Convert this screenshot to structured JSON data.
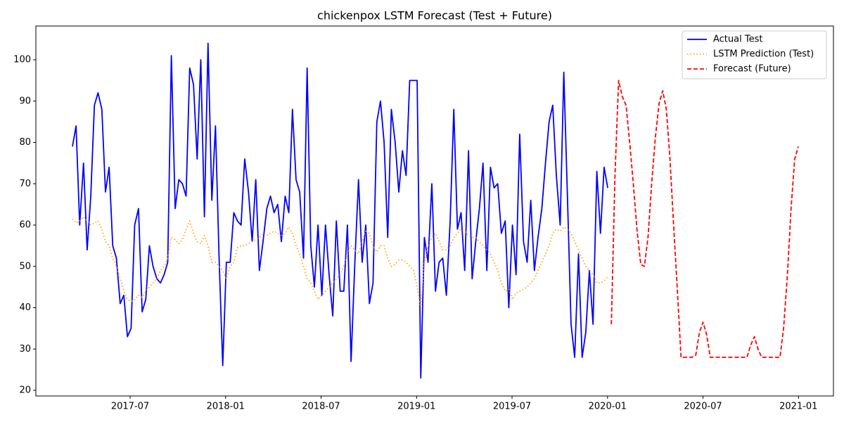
{
  "chart_data": {
    "type": "line",
    "title": "chickenpox LSTM Forecast (Test + Future)",
    "xlim": [
      2017.0065,
      2021.183
    ],
    "ylim": [
      18.64,
      108.17
    ],
    "xticks": [
      {
        "value": 2017.5,
        "label": "2017-07"
      },
      {
        "value": 2018.0,
        "label": "2018-01"
      },
      {
        "value": 2018.5,
        "label": "2018-07"
      },
      {
        "value": 2019.0,
        "label": "2019-01"
      },
      {
        "value": 2019.5,
        "label": "2019-07"
      },
      {
        "value": 2020.0,
        "label": "2020-01"
      },
      {
        "value": 2020.5,
        "label": "2020-07"
      },
      {
        "value": 2021.0,
        "label": "2021-01"
      }
    ],
    "yticks": [
      20,
      30,
      40,
      50,
      60,
      70,
      80,
      90,
      100
    ],
    "grid": false,
    "legend": "upper right",
    "x": [
      2017.198,
      2017.217,
      2017.236,
      2017.256,
      2017.275,
      2017.294,
      2017.313,
      2017.332,
      2017.352,
      2017.371,
      2017.39,
      2017.409,
      2017.428,
      2017.448,
      2017.467,
      2017.486,
      2017.505,
      2017.524,
      2017.544,
      2017.563,
      2017.582,
      2017.601,
      2017.62,
      2017.64,
      2017.659,
      2017.678,
      2017.697,
      2017.716,
      2017.736,
      2017.755,
      2017.774,
      2017.793,
      2017.812,
      2017.832,
      2017.851,
      2017.87,
      2017.889,
      2017.908,
      2017.928,
      2017.947,
      2017.966,
      2017.985,
      2018.004,
      2018.024,
      2018.043,
      2018.062,
      2018.081,
      2018.1,
      2018.12,
      2018.139,
      2018.158,
      2018.177,
      2018.196,
      2018.216,
      2018.235,
      2018.254,
      2018.273,
      2018.292,
      2018.312,
      2018.331,
      2018.35,
      2018.369,
      2018.388,
      2018.408,
      2018.427,
      2018.446,
      2018.465,
      2018.484,
      2018.504,
      2018.523,
      2018.542,
      2018.561,
      2018.58,
      2018.6,
      2018.619,
      2018.638,
      2018.657,
      2018.676,
      2018.696,
      2018.715,
      2018.734,
      2018.753,
      2018.772,
      2018.792,
      2018.811,
      2018.83,
      2018.849,
      2018.868,
      2018.888,
      2018.907,
      2018.926,
      2018.945,
      2018.964,
      2018.984,
      2019.003,
      2019.022,
      2019.041,
      2019.06,
      2019.08,
      2019.099,
      2019.118,
      2019.137,
      2019.156,
      2019.176,
      2019.195,
      2019.214,
      2019.233,
      2019.252,
      2019.272,
      2019.291,
      2019.31,
      2019.329,
      2019.348,
      2019.368,
      2019.387,
      2019.406,
      2019.425,
      2019.444,
      2019.464,
      2019.483,
      2019.502,
      2019.521,
      2019.54,
      2019.56,
      2019.579,
      2019.598,
      2019.617,
      2019.636,
      2019.656,
      2019.675,
      2019.694,
      2019.713,
      2019.732,
      2019.752,
      2019.771,
      2019.79,
      2019.809,
      2019.828,
      2019.848,
      2019.867,
      2019.886,
      2019.905,
      2019.924,
      2019.944,
      2019.963,
      2019.982,
      2020.001
    ],
    "series": [
      {
        "name": "Actual Test",
        "color": "#0000ff",
        "linestyle": "solid",
        "values": [
          79,
          84,
          60,
          75,
          54,
          67,
          89,
          92,
          88,
          68,
          74,
          55,
          52,
          41,
          43,
          33,
          35,
          60,
          64,
          39,
          42,
          55,
          50,
          47,
          46,
          48,
          51,
          101,
          64,
          71,
          70,
          67,
          98,
          94,
          76,
          100,
          62,
          104,
          66,
          84,
          52,
          26,
          51,
          51,
          63,
          61,
          60,
          76,
          68,
          56,
          71,
          49,
          56,
          64,
          67,
          63,
          65,
          56,
          67,
          63,
          88,
          71,
          68,
          52,
          98,
          55,
          45,
          60,
          43,
          60,
          48,
          38,
          61,
          44,
          44,
          60,
          27,
          50,
          71,
          51,
          60,
          41,
          46,
          85,
          90,
          80,
          57,
          88,
          80,
          68,
          78,
          72,
          95,
          95,
          95,
          23,
          57,
          51,
          70,
          44,
          51,
          52,
          43,
          61,
          88,
          59,
          63,
          49,
          78,
          47,
          56,
          64,
          75,
          49,
          74,
          69,
          70,
          58,
          61,
          40,
          60,
          48,
          82,
          56,
          51,
          66,
          49,
          57,
          64,
          75,
          85,
          89,
          72,
          60,
          97,
          67,
          36,
          28,
          53,
          28,
          34,
          49,
          36,
          73,
          58,
          74,
          69
        ]
      },
      {
        "name": "LSTM Prediction (Test)",
        "color": "#ffa500",
        "linestyle": "dotted",
        "values": [
          61.5,
          60.5,
          61,
          62,
          61,
          60,
          60.5,
          61,
          59,
          56,
          55,
          52,
          50,
          47,
          44,
          42,
          41.5,
          42,
          43,
          42.5,
          44,
          45,
          46,
          47,
          49,
          50,
          52,
          57,
          56.5,
          55.5,
          56.5,
          59,
          61,
          58,
          56,
          55.5,
          57.5,
          55,
          51,
          51,
          50,
          49,
          47,
          50,
          51,
          54.5,
          55,
          55,
          55.5,
          56,
          56.5,
          57,
          58,
          57.5,
          58,
          58.5,
          58,
          57.5,
          58,
          59.5,
          58,
          55,
          53,
          50,
          47,
          46,
          44,
          42,
          43,
          44,
          45,
          46,
          47,
          48,
          50,
          53,
          55,
          54,
          53,
          56,
          58.5,
          58,
          55,
          53.5,
          55,
          55,
          52,
          50,
          50.5,
          51.5,
          51.5,
          51,
          50,
          49,
          45,
          40,
          51,
          55,
          57,
          58,
          56,
          54,
          54,
          55,
          57,
          58,
          59,
          58.5,
          57.5,
          57,
          57,
          56,
          55,
          54,
          53,
          51,
          49,
          46,
          44,
          44.5,
          42,
          43.5,
          44,
          44.5,
          45,
          46,
          47,
          49,
          51,
          53,
          55,
          58,
          59,
          58.5,
          59.5,
          59,
          58,
          56,
          54,
          52,
          50,
          49,
          48,
          46,
          46,
          46.5,
          47.5
        ]
      },
      {
        "name": "Forecast (Future)",
        "color": "#ff0000",
        "linestyle": "dashed",
        "x": [
          2020.02,
          2020.039,
          2020.058,
          2020.078,
          2020.097,
          2020.116,
          2020.135,
          2020.154,
          2020.174,
          2020.193,
          2020.212,
          2020.231,
          2020.25,
          2020.27,
          2020.289,
          2020.308,
          2020.327,
          2020.346,
          2020.366,
          2020.385,
          2020.404,
          2020.423,
          2020.442,
          2020.462,
          2020.481,
          2020.5,
          2020.519,
          2020.538,
          2020.558,
          2020.577,
          2020.596,
          2020.615,
          2020.634,
          2020.654,
          2020.673,
          2020.692,
          2020.711,
          2020.73,
          2020.75,
          2020.769,
          2020.788,
          2020.807,
          2020.826,
          2020.846,
          2020.865,
          2020.884,
          2020.903,
          2020.922,
          2020.942,
          2020.961,
          2020.98,
          2020.999
        ],
        "values": [
          36,
          72,
          95,
          91,
          89,
          80,
          70,
          59,
          50.5,
          50,
          57,
          70,
          81,
          89.5,
          92.5,
          88,
          76,
          60,
          44,
          28,
          28,
          28,
          28,
          28.5,
          34,
          36.5,
          33.5,
          28,
          28,
          28,
          28,
          28,
          28,
          28,
          28,
          28,
          28,
          28,
          31,
          33,
          30,
          28,
          28,
          28,
          28,
          28,
          28,
          35,
          48,
          64,
          76,
          79
        ]
      }
    ]
  }
}
